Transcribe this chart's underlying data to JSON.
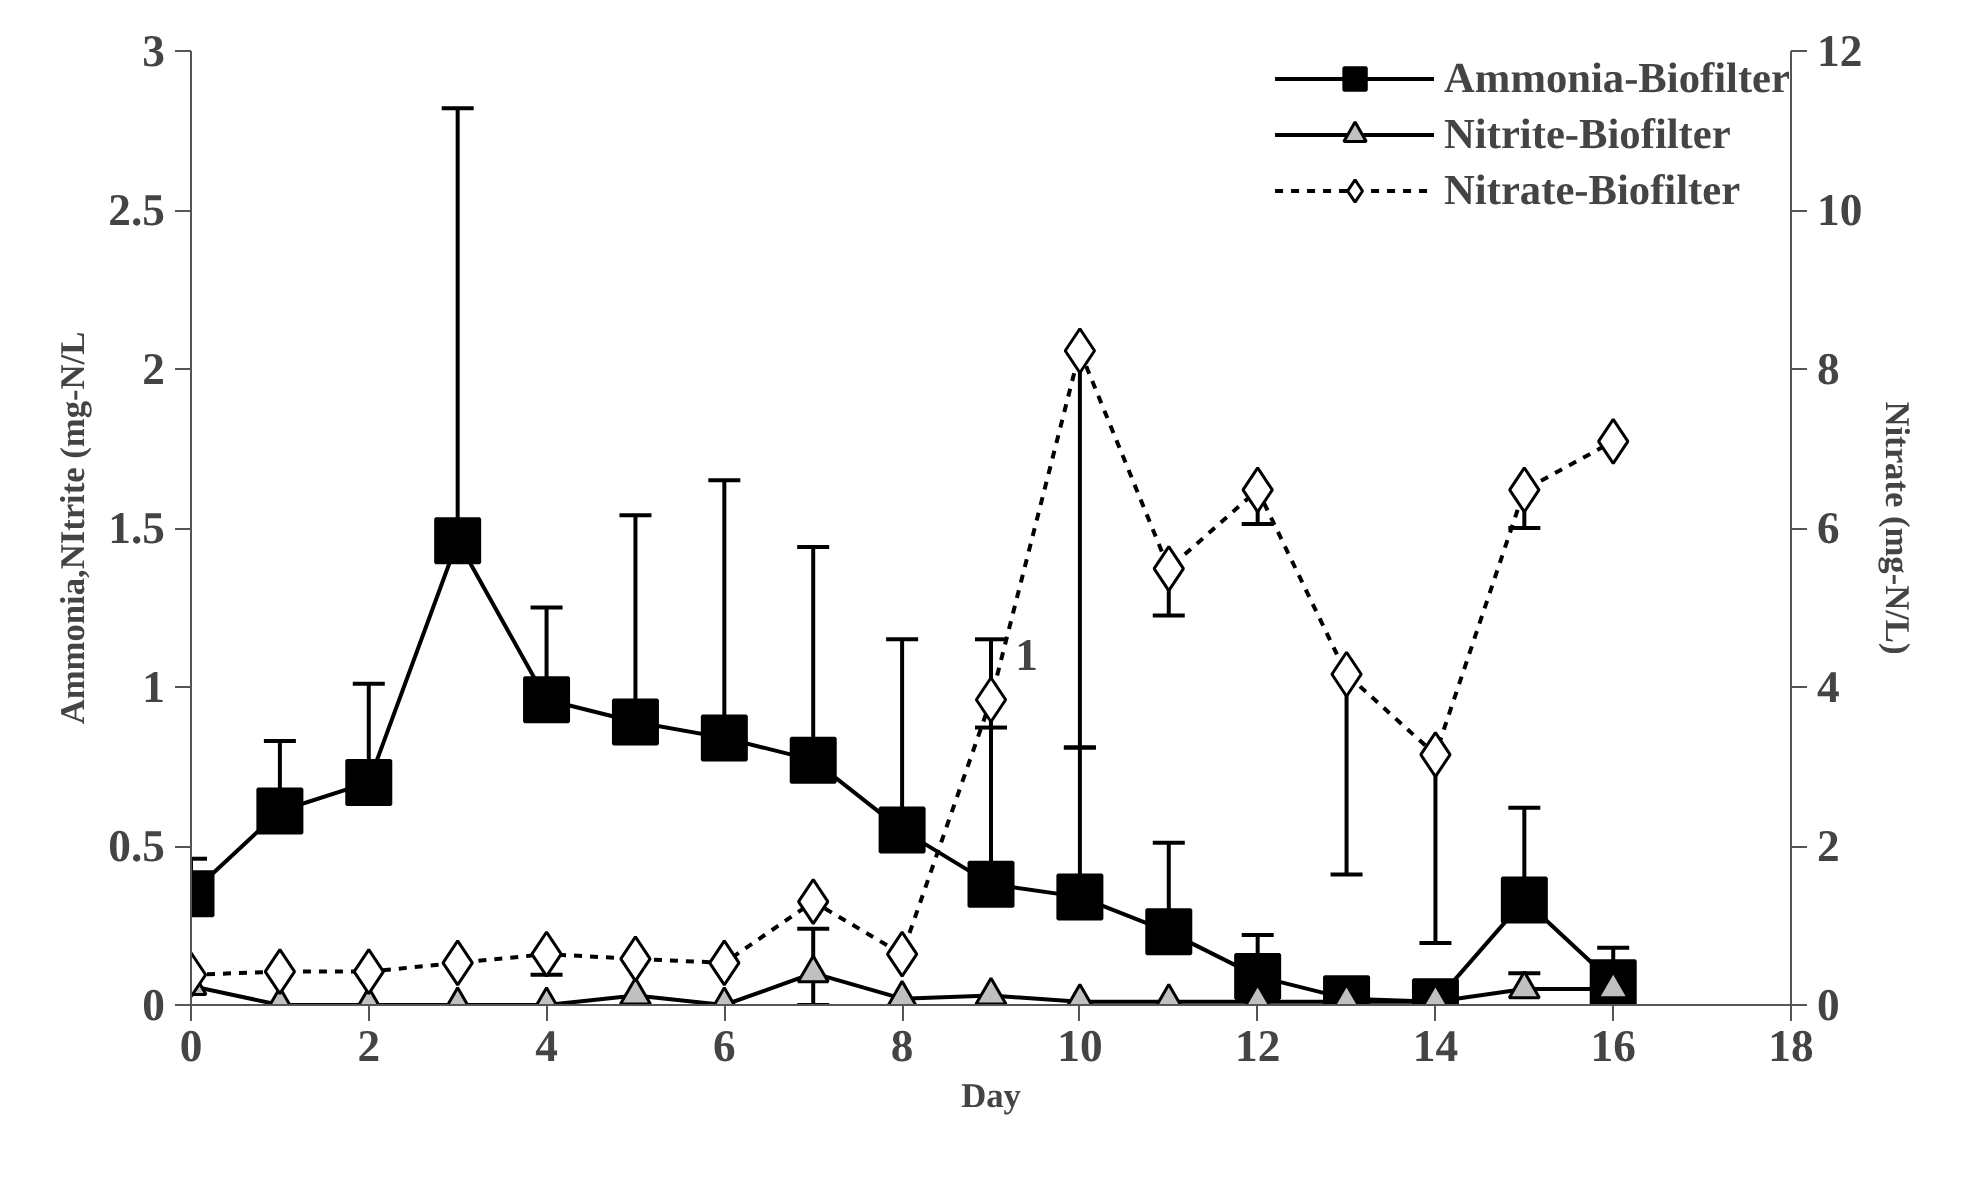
{
  "chart_data": {
    "type": "line",
    "xlabel": "Day",
    "ylabel": "Ammonia,NItrite (mg-N/L",
    "y2label": "Nitrate (mg-N/L)",
    "x": [
      0,
      1,
      2,
      3,
      4,
      5,
      6,
      7,
      8,
      9,
      10,
      11,
      12,
      13,
      14,
      15,
      16
    ],
    "xlim": [
      0,
      18
    ],
    "xticks": [
      0,
      2,
      4,
      6,
      8,
      10,
      12,
      14,
      16,
      18
    ],
    "ylim": [
      0,
      3
    ],
    "yticks": [
      0,
      0.5,
      1,
      1.5,
      2,
      2.5,
      3
    ],
    "y2lim": [
      0,
      12
    ],
    "y2ticks": [
      0,
      2,
      4,
      6,
      8,
      10,
      12
    ],
    "grid": false,
    "legend": "top right",
    "series": [
      {
        "name": "Ammonia-Biofilter",
        "color": "#000000",
        "marker": "square",
        "line_style": "solid",
        "values": [
          0.35,
          0.61,
          0.7,
          1.46,
          0.96,
          0.89,
          0.84,
          0.77,
          0.55,
          0.38,
          0.34,
          0.23,
          0.09,
          0.02,
          0.01,
          0.33,
          0.07
        ],
        "errors": [
          [
            0.35,
            0.46
          ],
          [
            0.61,
            0.83
          ],
          [
            0.7,
            1.01
          ],
          [
            1.46,
            2.82
          ],
          [
            0.96,
            1.25
          ],
          [
            0.89,
            1.54
          ],
          [
            0.84,
            1.65
          ],
          [
            0.77,
            1.44
          ],
          [
            0.55,
            1.15
          ],
          [
            0.38,
            1.15
          ],
          [
            0.34,
            0.81
          ],
          [
            0.23,
            0.51
          ],
          [
            0.09,
            0.22
          ],
          null,
          null,
          [
            0.33,
            0.62
          ],
          [
            0.07,
            0.18
          ]
        ]
      },
      {
        "name": "Nitrite-Biofilter",
        "color": "#c0c0c0",
        "marker": "triangle",
        "line_style": "solid",
        "values": [
          0.06,
          0,
          0,
          0,
          0,
          0.03,
          0,
          0.1,
          0.02,
          0.03,
          0.01,
          0.01,
          0.01,
          0.01,
          0.01,
          0.05,
          0.05
        ],
        "errors": [
          null,
          null,
          null,
          null,
          null,
          null,
          null,
          [
            0,
            0.24
          ],
          null,
          null,
          null,
          null,
          null,
          null,
          null,
          [
            0.05,
            0.1
          ],
          null
        ]
      },
      {
        "name": "Nitrate-Biofilter",
        "color": "#ffffff",
        "marker": "diamond",
        "line_style": "dotted",
        "axis": "y2",
        "values": [
          0.38,
          0.42,
          0.42,
          0.53,
          0.64,
          0.58,
          0.53,
          1.3,
          0.64,
          3.84,
          8.23,
          5.49,
          6.48,
          4.16,
          3.15,
          6.48,
          7.09
        ],
        "errors": [
          null,
          null,
          null,
          null,
          [
            0.38,
            0.64
          ],
          null,
          null,
          null,
          null,
          [
            3.49,
            3.84
          ],
          [
            3.24,
            8.23
          ],
          [
            4.9,
            5.49
          ],
          [
            6.05,
            6.48
          ],
          [
            1.64,
            4.16
          ],
          [
            0.78,
            3.15
          ],
          [
            6.0,
            6.48
          ],
          null
        ]
      }
    ],
    "annotations": [
      "1"
    ]
  }
}
